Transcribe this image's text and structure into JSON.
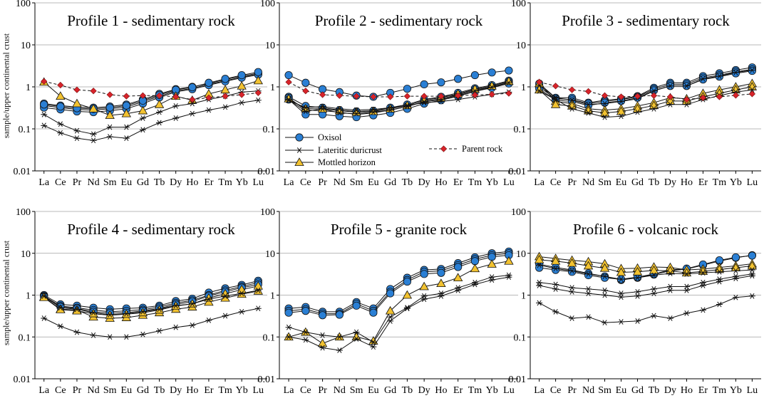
{
  "figure": {
    "ylabel": "sample/upper continental crust",
    "elements": [
      "La",
      "Ce",
      "Pr",
      "Nd",
      "Sm",
      "Eu",
      "Gd",
      "Tb",
      "Dy",
      "Ho",
      "Er",
      "Tm",
      "Yb",
      "Lu"
    ],
    "ytick_labels": [
      "0.01",
      "0.1",
      "1",
      "10",
      "100"
    ],
    "legend": {
      "oxisol": "Oxisol",
      "lateritic": "Lateritic duricrust",
      "mottled": "Mottled horizon",
      "parent": "Parent rock"
    },
    "colors": {
      "oxisol": "#2a7fd4",
      "mottled": "#f2c230",
      "parent": "#d8232a",
      "line": "#111111"
    }
  },
  "chart_data": [
    {
      "type": "line",
      "title": "Profile 1 - sedimentary rock",
      "yscale": "log",
      "ylim": [
        0.01,
        100
      ],
      "series": [
        {
          "name": "Oxisol",
          "kind": "oxisol",
          "values": [
            0.4,
            0.36,
            0.33,
            0.32,
            0.34,
            0.38,
            0.5,
            0.68,
            0.88,
            1.0,
            1.2,
            1.5,
            1.8,
            2.1
          ]
        },
        {
          "name": "Oxisol",
          "kind": "oxisol",
          "values": [
            0.36,
            0.32,
            0.29,
            0.28,
            0.3,
            0.33,
            0.44,
            0.6,
            0.8,
            0.92,
            1.15,
            1.4,
            1.7,
            2.0
          ]
        },
        {
          "name": "Oxisol",
          "kind": "oxisol",
          "values": [
            0.32,
            0.29,
            0.26,
            0.25,
            0.27,
            0.3,
            0.4,
            0.56,
            0.76,
            0.88,
            1.1,
            1.35,
            1.65,
            1.95
          ]
        },
        {
          "name": "Oxisol",
          "kind": "oxisol",
          "values": [
            0.38,
            0.34,
            0.31,
            0.3,
            0.32,
            0.36,
            0.47,
            0.64,
            0.85,
            0.98,
            1.25,
            1.55,
            1.9,
            2.25
          ]
        },
        {
          "name": "Mottled horizon",
          "kind": "mottled",
          "values": [
            1.3,
            0.6,
            0.4,
            0.3,
            0.21,
            0.23,
            0.27,
            0.38,
            0.6,
            0.48,
            0.68,
            0.85,
            1.05,
            1.4
          ]
        },
        {
          "name": "Lateritic duricrust",
          "kind": "lateritic",
          "values": [
            0.22,
            0.13,
            0.09,
            0.075,
            0.11,
            0.11,
            0.18,
            0.25,
            0.35,
            0.4,
            0.5,
            0.6,
            0.75,
            0.8
          ]
        },
        {
          "name": "Lateritic duricrust",
          "kind": "lateritic",
          "values": [
            0.12,
            0.08,
            0.06,
            0.053,
            0.065,
            0.06,
            0.095,
            0.14,
            0.18,
            0.23,
            0.28,
            0.33,
            0.42,
            0.48
          ]
        },
        {
          "name": "Parent rock",
          "kind": "parent",
          "values": [
            1.35,
            1.1,
            0.85,
            0.8,
            0.65,
            0.6,
            0.62,
            0.62,
            0.58,
            0.5,
            0.55,
            0.6,
            0.65,
            0.72
          ]
        }
      ]
    },
    {
      "type": "line",
      "title": "Profile 2 - sedimentary rock",
      "yscale": "log",
      "ylim": [
        0.01,
        100
      ],
      "series": [
        {
          "name": "Oxisol",
          "kind": "oxisol",
          "values": [
            1.9,
            1.25,
            0.88,
            0.75,
            0.62,
            0.58,
            0.72,
            0.9,
            1.15,
            1.28,
            1.55,
            1.9,
            2.2,
            2.45
          ]
        },
        {
          "name": "Oxisol",
          "kind": "oxisol",
          "values": [
            0.58,
            0.35,
            0.32,
            0.28,
            0.26,
            0.27,
            0.32,
            0.38,
            0.5,
            0.58,
            0.72,
            0.92,
            1.1,
            1.4
          ]
        },
        {
          "name": "Oxisol",
          "kind": "oxisol",
          "values": [
            0.55,
            0.28,
            0.27,
            0.25,
            0.22,
            0.24,
            0.28,
            0.34,
            0.45,
            0.52,
            0.65,
            0.85,
            1.0,
            1.3
          ]
        },
        {
          "name": "Oxisol",
          "kind": "oxisol",
          "values": [
            0.5,
            0.22,
            0.22,
            0.2,
            0.19,
            0.21,
            0.24,
            0.3,
            0.4,
            0.48,
            0.6,
            0.78,
            0.95,
            1.2
          ]
        },
        {
          "name": "Mottled horizon",
          "kind": "mottled",
          "values": [
            0.52,
            0.3,
            0.3,
            0.27,
            0.25,
            0.26,
            0.3,
            0.36,
            0.48,
            0.55,
            0.68,
            0.88,
            1.05,
            1.35
          ]
        },
        {
          "name": "Lateritic duricrust",
          "kind": "lateritic",
          "values": [
            0.48,
            0.32,
            0.34,
            0.3,
            0.28,
            0.29,
            0.32,
            0.36,
            0.42,
            0.45,
            0.5,
            0.58,
            0.66,
            0.75
          ]
        },
        {
          "name": "Lateritic duricrust",
          "kind": "lateritic",
          "values": [
            0.5,
            0.26,
            0.3,
            0.24,
            0.23,
            0.25,
            0.28,
            0.34,
            0.44,
            0.5,
            0.62,
            0.8,
            0.98,
            1.25
          ]
        },
        {
          "name": "Parent rock",
          "kind": "parent",
          "values": [
            1.3,
            0.8,
            0.65,
            0.62,
            0.6,
            0.58,
            0.58,
            0.6,
            0.6,
            0.6,
            0.62,
            0.64,
            0.66,
            0.7
          ]
        }
      ]
    },
    {
      "type": "line",
      "title": "Profile 3 - sedimentary rock",
      "yscale": "log",
      "ylim": [
        0.01,
        100
      ],
      "series": [
        {
          "name": "Oxisol",
          "kind": "oxisol",
          "values": [
            1.2,
            0.55,
            0.55,
            0.42,
            0.48,
            0.52,
            0.6,
            0.95,
            1.25,
            1.25,
            1.8,
            2.1,
            2.5,
            2.9
          ]
        },
        {
          "name": "Oxisol",
          "kind": "oxisol",
          "values": [
            1.0,
            0.52,
            0.5,
            0.4,
            0.45,
            0.5,
            0.58,
            0.88,
            1.15,
            1.15,
            1.65,
            1.9,
            2.3,
            2.6
          ]
        },
        {
          "name": "Oxisol",
          "kind": "oxisol",
          "values": [
            0.9,
            0.48,
            0.45,
            0.36,
            0.42,
            0.46,
            0.55,
            0.82,
            1.05,
            1.05,
            1.5,
            1.75,
            2.1,
            2.4
          ]
        },
        {
          "name": "Mottled horizon",
          "kind": "mottled",
          "values": [
            1.2,
            0.45,
            0.4,
            0.3,
            0.28,
            0.3,
            0.35,
            0.42,
            0.55,
            0.52,
            0.7,
            0.85,
            1.0,
            1.2
          ]
        },
        {
          "name": "Mottled horizon",
          "kind": "mottled",
          "values": [
            0.85,
            0.38,
            0.35,
            0.27,
            0.24,
            0.26,
            0.3,
            0.36,
            0.46,
            0.46,
            0.58,
            0.7,
            0.85,
            1.0
          ]
        },
        {
          "name": "Lateritic duricrust",
          "kind": "lateritic",
          "values": [
            0.8,
            0.5,
            0.3,
            0.24,
            0.19,
            0.2,
            0.25,
            0.3,
            0.38,
            0.38,
            0.5,
            0.62,
            0.75,
            0.85
          ]
        },
        {
          "name": "Lateritic duricrust",
          "kind": "lateritic",
          "values": [
            1.1,
            0.55,
            0.48,
            0.38,
            0.4,
            0.45,
            0.52,
            0.8,
            1.05,
            1.05,
            1.55,
            1.8,
            2.2,
            2.5
          ]
        },
        {
          "name": "Parent rock",
          "kind": "parent",
          "values": [
            1.3,
            1.05,
            0.85,
            0.78,
            0.62,
            0.58,
            0.6,
            0.62,
            0.58,
            0.5,
            0.55,
            0.58,
            0.63,
            0.68
          ]
        }
      ]
    },
    {
      "type": "line",
      "title": "Profile 4 - sedimentary rock",
      "yscale": "log",
      "ylim": [
        0.01,
        100
      ],
      "series": [
        {
          "name": "Oxisol",
          "kind": "oxisol",
          "values": [
            1.0,
            0.6,
            0.56,
            0.5,
            0.46,
            0.48,
            0.5,
            0.56,
            0.72,
            0.82,
            1.15,
            1.45,
            1.75,
            2.2
          ]
        },
        {
          "name": "Oxisol",
          "kind": "oxisol",
          "values": [
            0.95,
            0.55,
            0.5,
            0.44,
            0.4,
            0.42,
            0.45,
            0.52,
            0.65,
            0.75,
            1.0,
            1.3,
            1.6,
            2.0
          ]
        },
        {
          "name": "Oxisol",
          "kind": "oxisol",
          "values": [
            0.92,
            0.52,
            0.48,
            0.4,
            0.37,
            0.38,
            0.42,
            0.48,
            0.6,
            0.7,
            0.95,
            1.2,
            1.5,
            1.8
          ]
        },
        {
          "name": "Mottled horizon",
          "kind": "mottled",
          "values": [
            0.9,
            0.46,
            0.44,
            0.3,
            0.28,
            0.29,
            0.33,
            0.38,
            0.46,
            0.52,
            0.68,
            0.85,
            1.05,
            1.25
          ]
        },
        {
          "name": "Mottled horizon",
          "kind": "mottled",
          "values": [
            0.88,
            0.45,
            0.42,
            0.36,
            0.33,
            0.35,
            0.38,
            0.44,
            0.55,
            0.62,
            0.85,
            1.08,
            1.35,
            1.65
          ]
        },
        {
          "name": "Lateritic duricrust",
          "kind": "lateritic",
          "values": [
            0.28,
            0.18,
            0.13,
            0.11,
            0.1,
            0.1,
            0.115,
            0.14,
            0.17,
            0.19,
            0.25,
            0.32,
            0.4,
            0.48
          ]
        },
        {
          "name": "Lateritic duricrust",
          "kind": "lateritic",
          "values": [
            0.95,
            0.5,
            0.46,
            0.38,
            0.34,
            0.36,
            0.4,
            0.46,
            0.56,
            0.62,
            0.8,
            0.95,
            1.1,
            1.3
          ]
        }
      ]
    },
    {
      "type": "line",
      "title": "Profile 5 - granite rock",
      "yscale": "log",
      "ylim": [
        0.01,
        100
      ],
      "series": [
        {
          "name": "Oxisol",
          "kind": "oxisol",
          "values": [
            0.48,
            0.52,
            0.4,
            0.4,
            0.68,
            0.48,
            1.4,
            2.6,
            4.0,
            4.2,
            5.8,
            8.0,
            10.0,
            11.0
          ]
        },
        {
          "name": "Oxisol",
          "kind": "oxisol",
          "values": [
            0.42,
            0.46,
            0.36,
            0.36,
            0.62,
            0.42,
            1.2,
            2.3,
            3.6,
            3.8,
            5.2,
            7.2,
            9.0,
            10.0
          ]
        },
        {
          "name": "Oxisol",
          "kind": "oxisol",
          "values": [
            0.38,
            0.42,
            0.33,
            0.34,
            0.56,
            0.38,
            1.1,
            2.1,
            3.2,
            3.4,
            4.7,
            6.5,
            8.2,
            9.0
          ]
        },
        {
          "name": "Mottled horizon",
          "kind": "mottled",
          "values": [
            0.1,
            0.13,
            0.07,
            0.1,
            0.1,
            0.08,
            0.42,
            1.0,
            1.6,
            1.9,
            2.6,
            4.3,
            5.5,
            6.5
          ]
        },
        {
          "name": "Lateritic duricrust",
          "kind": "lateritic",
          "values": [
            0.17,
            0.13,
            0.11,
            0.1,
            0.13,
            0.075,
            0.3,
            0.5,
            0.95,
            1.1,
            1.5,
            2.0,
            2.7,
            3.0
          ]
        },
        {
          "name": "Lateritic duricrust",
          "kind": "lateritic",
          "values": [
            0.1,
            0.085,
            0.055,
            0.048,
            0.09,
            0.058,
            0.24,
            0.48,
            0.8,
            0.95,
            1.3,
            1.8,
            2.3,
            2.7
          ]
        }
      ]
    },
    {
      "type": "line",
      "title": "Profile 6 - volcanic rock",
      "yscale": "log",
      "ylim": [
        0.01,
        100
      ],
      "series": [
        {
          "name": "Oxisol",
          "kind": "oxisol",
          "values": [
            5.5,
            4.6,
            4.0,
            3.3,
            2.8,
            2.3,
            2.6,
            3.1,
            3.8,
            4.2,
            5.2,
            6.5,
            7.8,
            9.0
          ]
        },
        {
          "name": "Oxisol",
          "kind": "oxisol",
          "values": [
            4.5,
            4.0,
            3.6,
            3.0,
            2.6,
            2.4,
            2.7,
            3.2,
            4.0,
            4.3,
            5.4,
            6.8,
            8.0,
            8.8
          ]
        },
        {
          "name": "Mottled horizon",
          "kind": "mottled",
          "values": [
            8.3,
            7.5,
            6.8,
            6.3,
            5.6,
            4.3,
            4.4,
            4.7,
            4.6,
            4.0,
            4.2,
            4.6,
            5.0,
            5.6
          ]
        },
        {
          "name": "Mottled horizon",
          "kind": "mottled",
          "values": [
            7.0,
            6.5,
            5.8,
            5.0,
            4.4,
            3.5,
            3.6,
            3.9,
            3.8,
            3.4,
            3.7,
            4.1,
            4.5,
            5.0
          ]
        },
        {
          "name": "Lateritic duricrust",
          "kind": "lateritic",
          "values": [
            5.2,
            4.3,
            3.8,
            3.2,
            2.8,
            2.4,
            2.6,
            3.0,
            3.3,
            3.2,
            3.4,
            3.6,
            3.8,
            4.0
          ]
        },
        {
          "name": "Lateritic duricrust",
          "kind": "lateritic",
          "values": [
            2.0,
            1.8,
            1.5,
            1.4,
            1.3,
            1.1,
            1.2,
            1.4,
            1.6,
            1.6,
            2.0,
            2.4,
            2.8,
            3.2
          ]
        },
        {
          "name": "Lateritic duricrust",
          "kind": "lateritic",
          "values": [
            1.7,
            1.4,
            1.2,
            1.1,
            1.0,
            0.9,
            0.95,
            1.1,
            1.3,
            1.3,
            1.7,
            2.1,
            2.5,
            2.9
          ]
        },
        {
          "name": "Lateritic duricrust",
          "kind": "lateritic",
          "values": [
            0.65,
            0.4,
            0.28,
            0.3,
            0.22,
            0.23,
            0.24,
            0.32,
            0.28,
            0.37,
            0.44,
            0.6,
            0.88,
            0.95
          ]
        }
      ]
    }
  ]
}
